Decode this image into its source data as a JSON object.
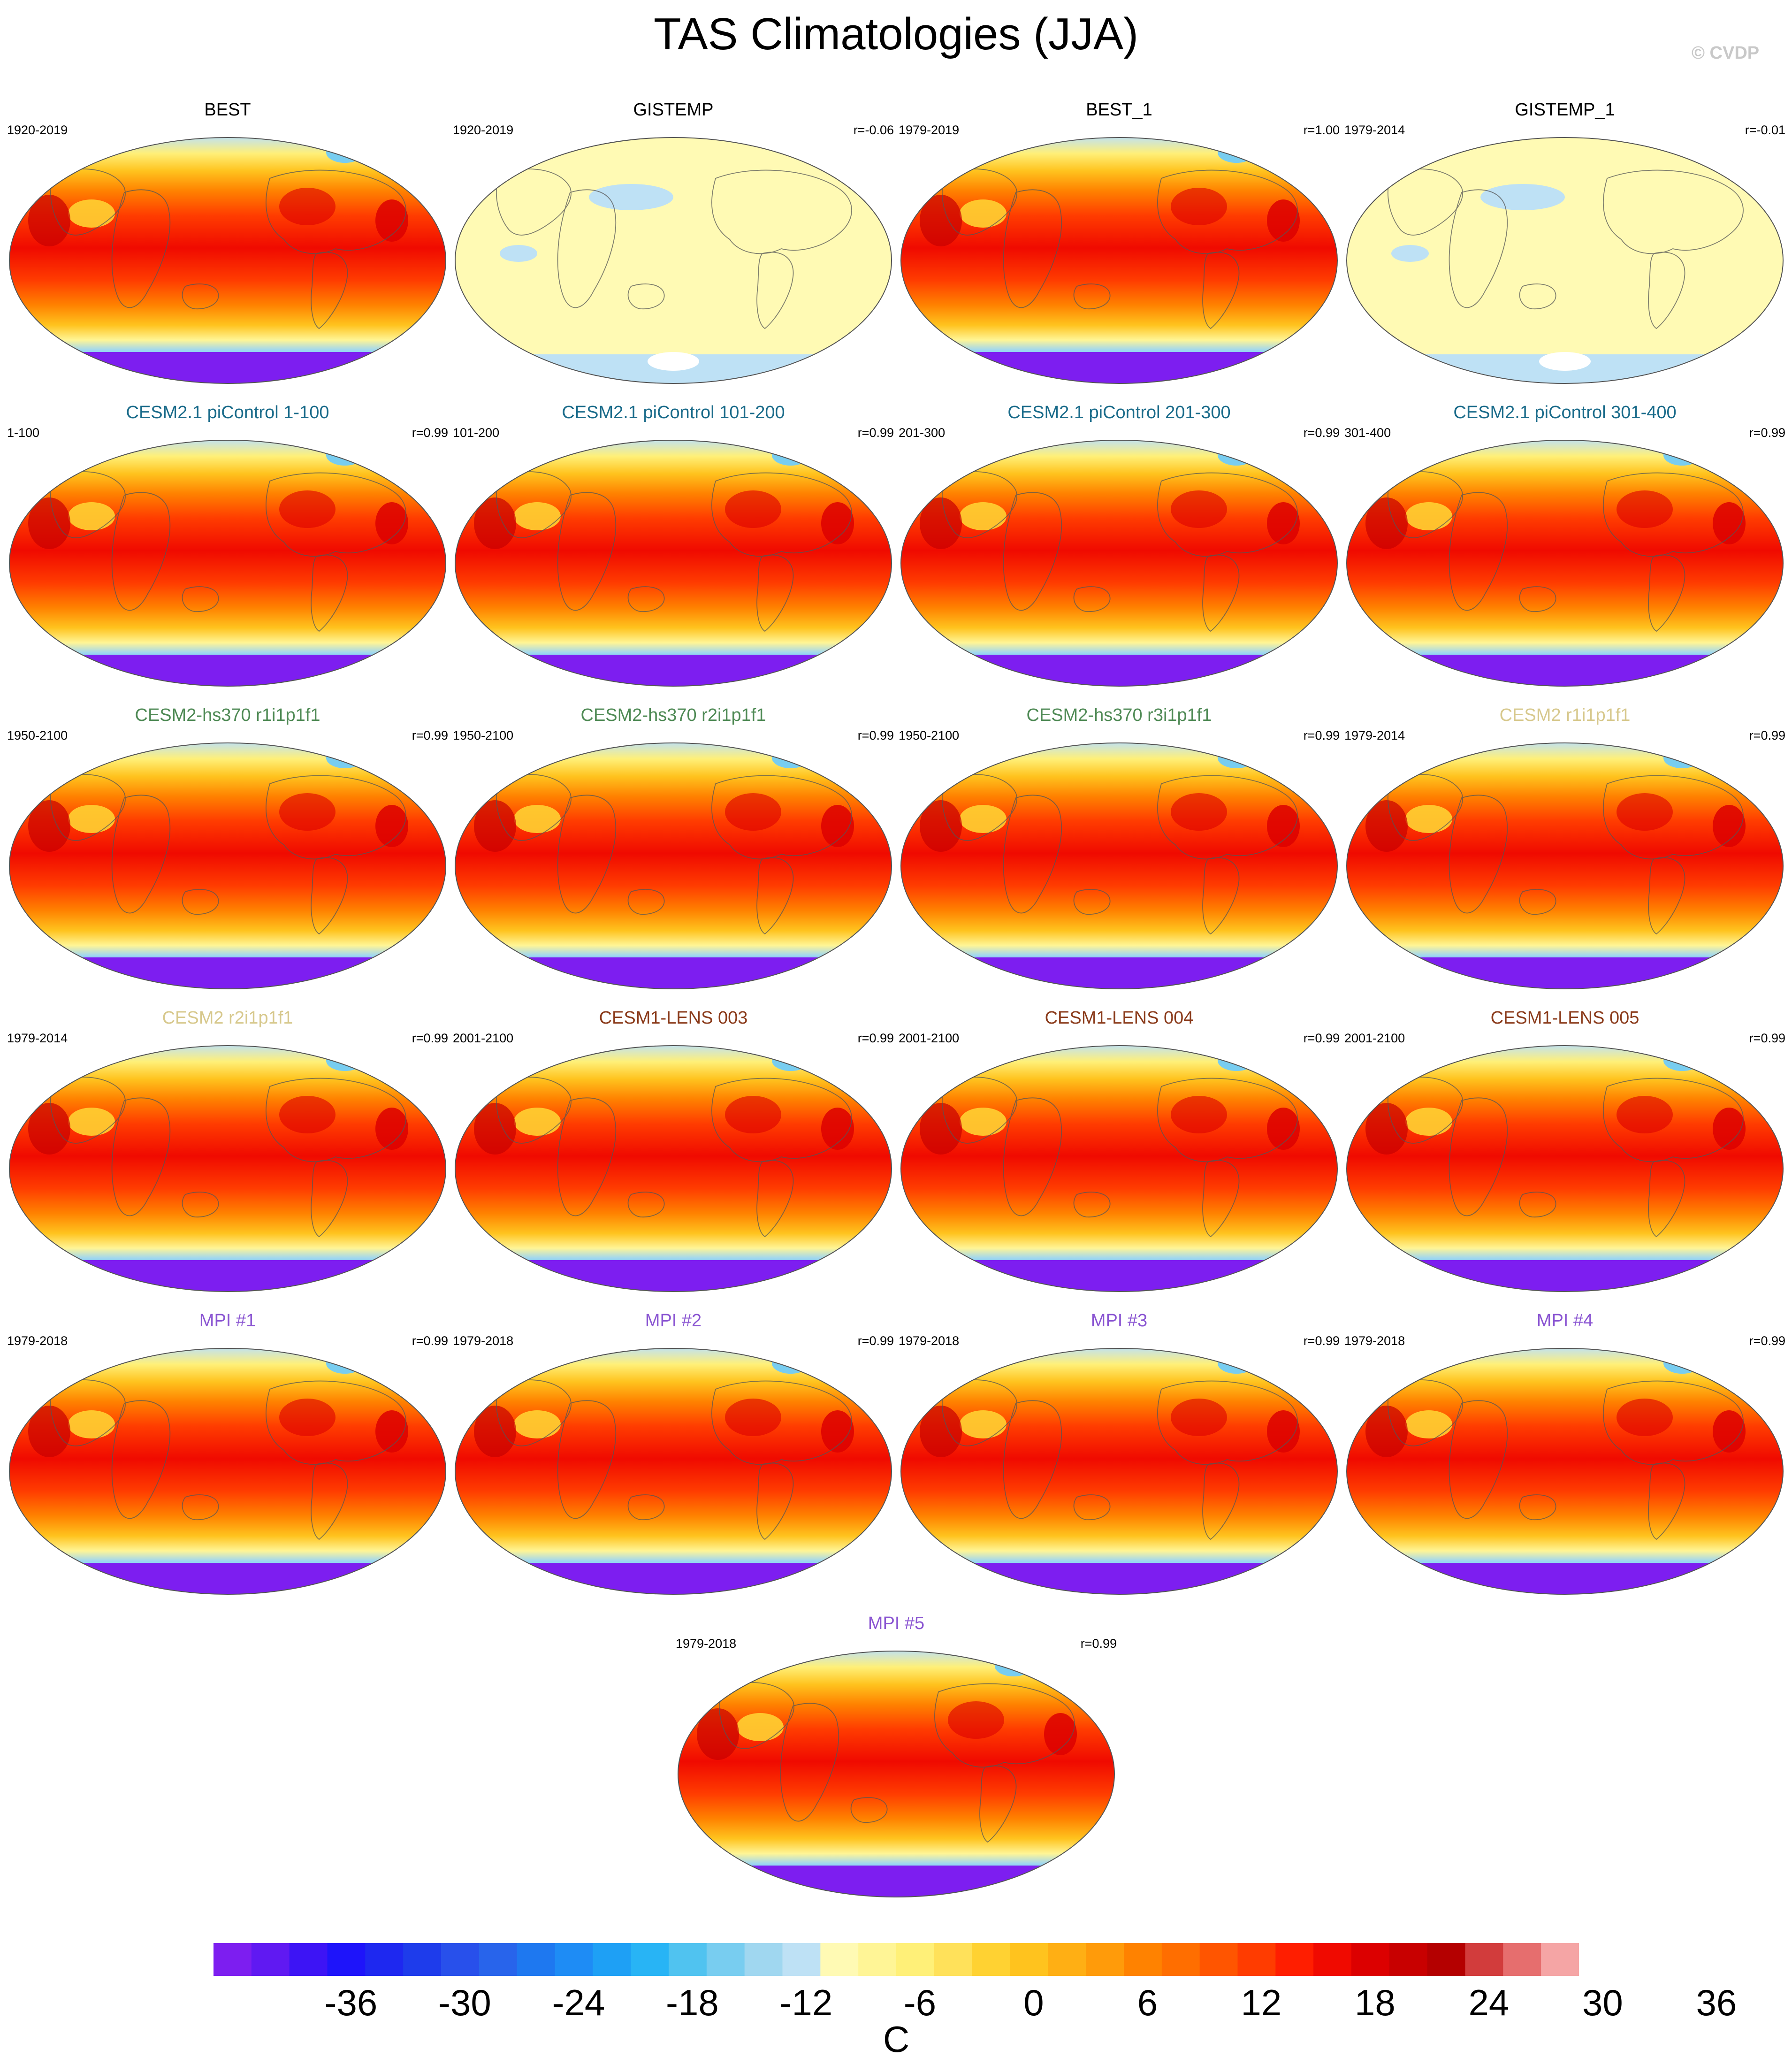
{
  "title": "TAS Climatologies (JJA)",
  "copyright": "© CVDP",
  "units": "C",
  "colorbar": {
    "colors": [
      "#7d1ef0",
      "#6019f2",
      "#3d14f5",
      "#1e14fa",
      "#1e28f0",
      "#1e3ceb",
      "#2850eb",
      "#2864eb",
      "#1e78f0",
      "#1e8cf5",
      "#1ea0f5",
      "#28b4f5",
      "#50c3f0",
      "#78cdf0",
      "#a0d7f0",
      "#bee1f5",
      "#fffab4",
      "#fff596",
      "#fff078",
      "#ffe15a",
      "#ffd232",
      "#ffc31e",
      "#ffaf14",
      "#ff9b0a",
      "#ff8200",
      "#ff6e00",
      "#ff5500",
      "#ff3c00",
      "#ff1e00",
      "#f00a00",
      "#dc0000",
      "#c80000",
      "#b40000",
      "#d23c3c",
      "#e66e6e",
      "#f5a5a5"
    ],
    "tick_labels": [
      "-36",
      "-30",
      "-24",
      "-18",
      "-12",
      "-6",
      "0",
      "6",
      "12",
      "18",
      "24",
      "30",
      "36"
    ]
  },
  "panels": [
    {
      "title": "BEST",
      "title_color": "#000000",
      "period": "1920-2019",
      "corr": "",
      "style": "full"
    },
    {
      "title": "GISTEMP",
      "title_color": "#000000",
      "period": "1920-2019",
      "corr": "r=-0.06",
      "style": "anomaly"
    },
    {
      "title": "BEST_1",
      "title_color": "#000000",
      "period": "1979-2019",
      "corr": "r=1.00",
      "style": "full"
    },
    {
      "title": "GISTEMP_1",
      "title_color": "#000000",
      "period": "1979-2014",
      "corr": "r=-0.01",
      "style": "anomaly"
    },
    {
      "title": "CESM2.1 piControl 1-100",
      "title_color": "#1a6b8a",
      "period": "1-100",
      "corr": "r=0.99",
      "style": "full"
    },
    {
      "title": "CESM2.1 piControl 101-200",
      "title_color": "#1a6b8a",
      "period": "101-200",
      "corr": "r=0.99",
      "style": "full"
    },
    {
      "title": "CESM2.1 piControl 201-300",
      "title_color": "#1a6b8a",
      "period": "201-300",
      "corr": "r=0.99",
      "style": "full"
    },
    {
      "title": "CESM2.1 piControl 301-400",
      "title_color": "#1a6b8a",
      "period": "301-400",
      "corr": "r=0.99",
      "style": "full"
    },
    {
      "title": "CESM2-hs370 r1i1p1f1",
      "title_color": "#4f8a55",
      "period": "1950-2100",
      "corr": "r=0.99",
      "style": "full"
    },
    {
      "title": "CESM2-hs370 r2i1p1f1",
      "title_color": "#4f8a55",
      "period": "1950-2100",
      "corr": "r=0.99",
      "style": "full"
    },
    {
      "title": "CESM2-hs370 r3i1p1f1",
      "title_color": "#4f8a55",
      "period": "1950-2100",
      "corr": "r=0.99",
      "style": "full"
    },
    {
      "title": "CESM2 r1i1p1f1",
      "title_color": "#d7c88c",
      "period": "1979-2014",
      "corr": "r=0.99",
      "style": "full"
    },
    {
      "title": "CESM2 r2i1p1f1",
      "title_color": "#d7c88c",
      "period": "1979-2014",
      "corr": "r=0.99",
      "style": "full"
    },
    {
      "title": "CESM1-LENS 003",
      "title_color": "#8a3a1a",
      "period": "2001-2100",
      "corr": "r=0.99",
      "style": "full"
    },
    {
      "title": "CESM1-LENS 004",
      "title_color": "#8a3a1a",
      "period": "2001-2100",
      "corr": "r=0.99",
      "style": "full"
    },
    {
      "title": "CESM1-LENS 005",
      "title_color": "#8a3a1a",
      "period": "2001-2100",
      "corr": "r=0.99",
      "style": "full"
    },
    {
      "title": "MPI #1",
      "title_color": "#8a55d2",
      "period": "1979-2018",
      "corr": "r=0.99",
      "style": "full"
    },
    {
      "title": "MPI #2",
      "title_color": "#8a55d2",
      "period": "1979-2018",
      "corr": "r=0.99",
      "style": "full"
    },
    {
      "title": "MPI #3",
      "title_color": "#8a55d2",
      "period": "1979-2018",
      "corr": "r=0.99",
      "style": "full"
    },
    {
      "title": "MPI #4",
      "title_color": "#8a55d2",
      "period": "1979-2018",
      "corr": "r=0.99",
      "style": "full"
    },
    {
      "title": "MPI #5",
      "title_color": "#8a55d2",
      "period": "1979-2018",
      "corr": "r=0.99",
      "style": "full"
    }
  ]
}
